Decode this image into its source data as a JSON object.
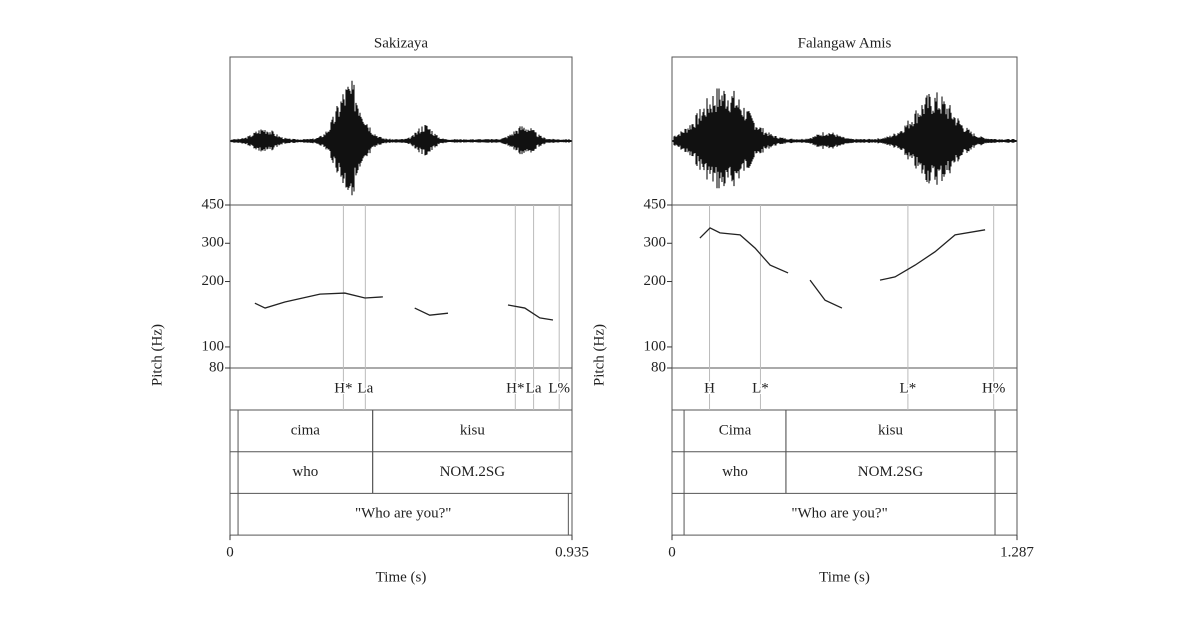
{
  "chart_data": [
    {
      "type": "pitch",
      "title": "Sakizaya",
      "y_label": "Pitch (Hz)",
      "x_label": "Time (s)",
      "xlim": [
        0,
        0.935
      ],
      "xticks": [
        0,
        0.935
      ],
      "ylim": [
        80,
        450
      ],
      "yticks": [
        80,
        100,
        200,
        300,
        450
      ],
      "log_scale": true,
      "x": [
        0.068,
        0.096,
        0.15,
        0.246,
        0.314,
        0.369,
        0.418,
        null,
        0.505,
        0.546,
        0.596,
        null,
        0.76,
        0.806,
        0.847,
        0.883
      ],
      "values": [
        159,
        151,
        161,
        175,
        177,
        168,
        170,
        null,
        151,
        140,
        143,
        null,
        156,
        151,
        136,
        133
      ],
      "tones": [
        {
          "time": 0.31,
          "label": "H*"
        },
        {
          "time": 0.37,
          "label": "La"
        },
        {
          "time": 0.78,
          "label": "H*"
        },
        {
          "time": 0.83,
          "label": "La"
        },
        {
          "time": 0.9,
          "label": "L%"
        }
      ],
      "tiers": [
        [
          {
            "start": 0.022,
            "end": 0.39,
            "label": "cima"
          },
          {
            "start": 0.39,
            "end": 0.935,
            "label": "kisu"
          }
        ],
        [
          {
            "start": 0.022,
            "end": 0.39,
            "label": "who"
          },
          {
            "start": 0.39,
            "end": 0.935,
            "label": "NOM.2SG"
          }
        ],
        [
          {
            "start": 0.022,
            "end": 0.925,
            "label": "\"Who are you?\""
          }
        ]
      ]
    },
    {
      "type": "pitch",
      "title": "Falangaw Amis",
      "y_label": "Pitch (Hz)",
      "x_label": "Time (s)",
      "xlim": [
        0,
        1.287
      ],
      "xticks": [
        0,
        1.287
      ],
      "ylim": [
        80,
        450
      ],
      "yticks": [
        80,
        100,
        200,
        300,
        450
      ],
      "log_scale": true,
      "x": [
        0.104,
        0.142,
        0.179,
        0.254,
        0.31,
        0.366,
        0.433,
        null,
        0.515,
        0.571,
        0.634,
        null,
        0.776,
        0.832,
        0.907,
        0.981,
        1.056,
        1.168
      ],
      "values": [
        317,
        353,
        335,
        328,
        285,
        238,
        219,
        null,
        203,
        164,
        151,
        null,
        203,
        210,
        238,
        274,
        328,
        346
      ],
      "tones": [
        {
          "time": 0.14,
          "label": "H"
        },
        {
          "time": 0.33,
          "label": "L*"
        },
        {
          "time": 0.88,
          "label": "L*"
        },
        {
          "time": 1.2,
          "label": "H%"
        }
      ],
      "tiers": [
        [
          {
            "start": 0.045,
            "end": 0.425,
            "label": "Cima"
          },
          {
            "start": 0.425,
            "end": 1.205,
            "label": "kisu"
          }
        ],
        [
          {
            "start": 0.045,
            "end": 0.425,
            "label": "who"
          },
          {
            "start": 0.425,
            "end": 1.205,
            "label": "NOM.2SG"
          }
        ],
        [
          {
            "start": 0.045,
            "end": 1.205,
            "label": "\"Who are you?\""
          }
        ]
      ]
    }
  ]
}
